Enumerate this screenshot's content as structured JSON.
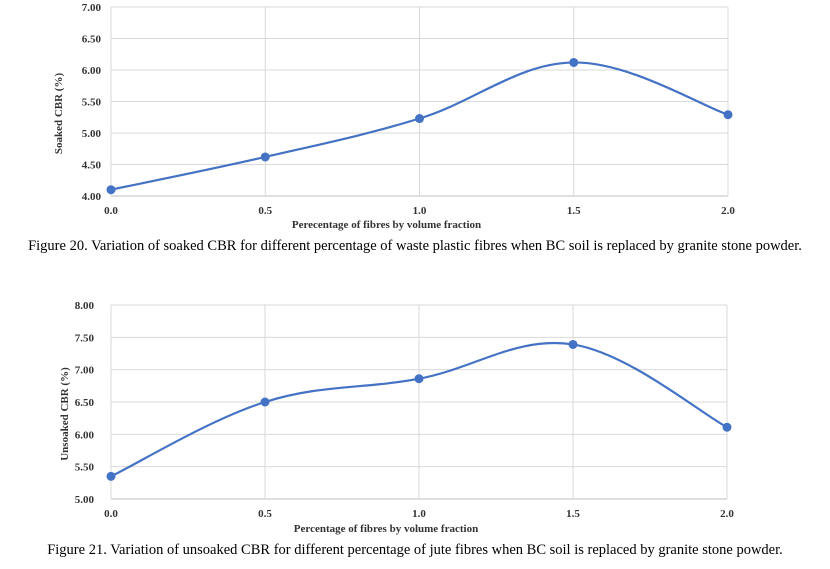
{
  "colors": {
    "series": "#4472c4",
    "grid": "#d9d9d9"
  },
  "chart_data": [
    {
      "type": "line",
      "smooth": true,
      "x": [
        0.0,
        0.5,
        1.0,
        1.5,
        2.0
      ],
      "x_tick_labels": [
        "0.0",
        "0.5",
        "1.0",
        "1.5",
        "2.0"
      ],
      "y_tick_labels": [
        "4.00",
        "4.50",
        "5.00",
        "5.50",
        "6.00",
        "6.50",
        "7.00"
      ],
      "ylim": [
        4.0,
        7.0
      ],
      "series": [
        {
          "values": [
            4.1,
            4.62,
            5.23,
            6.12,
            5.29
          ]
        }
      ],
      "xlabel": "Perecentage of fibres by volume fraction",
      "ylabel": "Soaked CBR (%)",
      "grid": true,
      "caption": "Figure 20. Variation of soaked CBR for different percentage of waste plastic fibres when BC soil is replaced by granite stone powder."
    },
    {
      "type": "line",
      "smooth": true,
      "x": [
        0.0,
        0.5,
        1.0,
        1.5,
        2.0
      ],
      "x_tick_labels": [
        "0.0",
        "0.5",
        "1.0",
        "1.5",
        "2.0"
      ],
      "y_tick_labels": [
        "5.00",
        "5.50",
        "6.00",
        "6.50",
        "7.00",
        "7.50",
        "8.00"
      ],
      "ylim": [
        5.0,
        8.0
      ],
      "series": [
        {
          "values": [
            5.35,
            6.5,
            6.86,
            7.39,
            6.11
          ]
        }
      ],
      "xlabel": "Percentage of fibres by volume fraction",
      "ylabel": "Unsoaked CBR (%)",
      "grid": true,
      "caption": "Figure 21. Variation of unsoaked CBR for different percentage of jute fibres when BC soil is replaced by granite stone powder."
    }
  ]
}
